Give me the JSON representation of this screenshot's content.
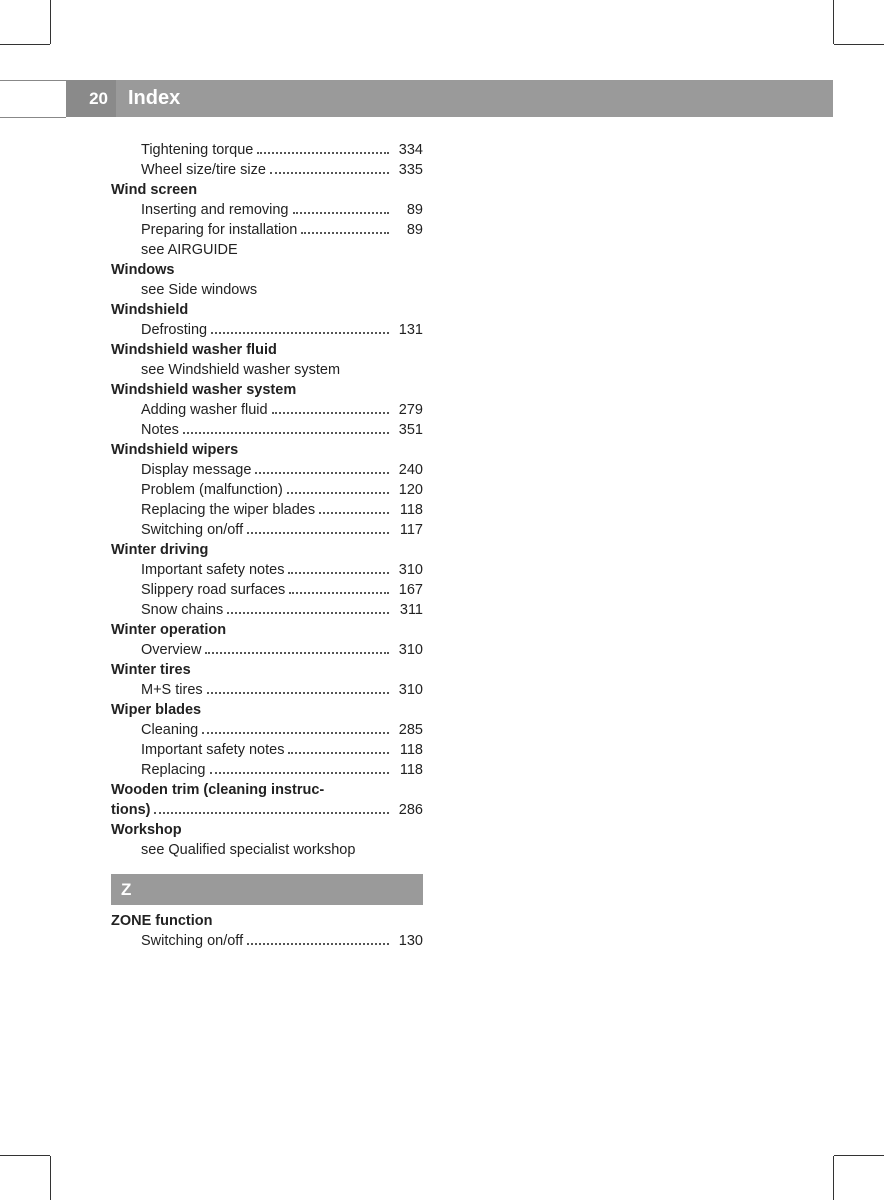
{
  "header": {
    "page_number": "20",
    "title": "Index",
    "bar_color": "#9a9a9a",
    "page_num_bg": "#8a8a8a",
    "text_color": "#ffffff"
  },
  "entries": [
    {
      "text": "Tightening torque",
      "page": "334",
      "indent": true
    },
    {
      "text": "Wheel size/tire size",
      "page": "335",
      "indent": true
    },
    {
      "text": "Wind screen",
      "bold": true
    },
    {
      "text": "Inserting and removing",
      "page": "89",
      "indent": true
    },
    {
      "text": "Preparing for installation",
      "page": "89",
      "indent": true
    },
    {
      "text": "see AIRGUIDE",
      "indent": true
    },
    {
      "text": "Windows",
      "bold": true
    },
    {
      "text": "see Side windows",
      "indent": true
    },
    {
      "text": "Windshield",
      "bold": true
    },
    {
      "text": "Defrosting",
      "page": "131",
      "indent": true
    },
    {
      "text": "Windshield washer fluid",
      "bold": true
    },
    {
      "text": "see Windshield washer system",
      "indent": true
    },
    {
      "text": "Windshield washer system",
      "bold": true
    },
    {
      "text": "Adding washer fluid",
      "page": "279",
      "indent": true
    },
    {
      "text": "Notes",
      "page": "351",
      "indent": true
    },
    {
      "text": "Windshield wipers",
      "bold": true
    },
    {
      "text": "Display message",
      "page": "240",
      "indent": true
    },
    {
      "text": "Problem (malfunction)",
      "page": "120",
      "indent": true
    },
    {
      "text": "Replacing the wiper blades",
      "page": "118",
      "indent": true
    },
    {
      "text": "Switching on/off",
      "page": "117",
      "indent": true
    },
    {
      "text": "Winter driving",
      "bold": true
    },
    {
      "text": "Important safety notes",
      "page": "310",
      "indent": true
    },
    {
      "text": "Slippery road surfaces",
      "page": "167",
      "indent": true
    },
    {
      "text": "Snow chains",
      "page": "311",
      "indent": true
    },
    {
      "text": "Winter operation",
      "bold": true
    },
    {
      "text": "Overview",
      "page": "310",
      "indent": true
    },
    {
      "text": "Winter tires",
      "bold": true
    },
    {
      "text": "M+S tires",
      "page": "310",
      "indent": true
    },
    {
      "text": "Wiper blades",
      "bold": true
    },
    {
      "text": "Cleaning",
      "page": "285",
      "indent": true
    },
    {
      "text": "Important safety notes",
      "page": "118",
      "indent": true
    },
    {
      "text": "Replacing",
      "page": "118",
      "indent": true
    },
    {
      "text": "Wooden trim (cleaning instruc-",
      "bold": true
    },
    {
      "text": "tions)",
      "page": "286",
      "bold": true,
      "dots_after_bold": true
    },
    {
      "text": "Workshop",
      "bold": true
    },
    {
      "text": "see Qualified specialist workshop",
      "indent": true
    }
  ],
  "section_z": {
    "letter": "Z",
    "entries": [
      {
        "text": "ZONE function",
        "bold": true
      },
      {
        "text": "Switching on/off",
        "page": "130",
        "indent": true
      }
    ]
  }
}
